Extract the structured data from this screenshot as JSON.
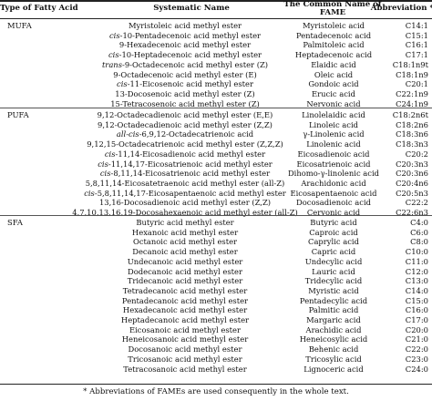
{
  "header": {
    "type_label": "Type of Fatty Acid",
    "systematic_label": "Systematic Name",
    "common_label_line1": "The Common Name of",
    "common_label_line2": "FAME",
    "abbr_label": "Abbreviation *"
  },
  "groups": [
    {
      "name": "MUFA",
      "rows": [
        {
          "prefix": "",
          "systematic": "Myristoleic acid methyl ester",
          "common": "Myristoleic acid",
          "abbr": "C14:1"
        },
        {
          "prefix": "cis",
          "systematic": "-10-Pentadecenoic acid methyl ester",
          "common": "Pentadecenoic acid",
          "abbr": "C15:1"
        },
        {
          "prefix": "",
          "systematic": "9-Hexadecenoic acid methyl ester",
          "common": "Palmitoleic acid",
          "abbr": "C16:1"
        },
        {
          "prefix": "cis",
          "systematic": "-10-Heptadecenoic acid methyl ester",
          "common": "Heptadecenoic acid",
          "abbr": "C17:1"
        },
        {
          "prefix": "trans",
          "systematic": "-9-Octadecenoic acid methyl ester (Z)",
          "common": "Elaidic acid",
          "abbr": "C18:1n9t"
        },
        {
          "prefix": "",
          "systematic": "9-Octadecenoic acid methyl ester (E)",
          "common": "Oleic acid",
          "abbr": "C18:1n9"
        },
        {
          "prefix": "cis",
          "systematic": "-11-Eicosenoic acid methyl ester",
          "common": "Gondoic acid",
          "abbr": "C20:1"
        },
        {
          "prefix": "",
          "systematic": "13-Docosenoic acid methyl ester (Z)",
          "common": "Erucic acid",
          "abbr": "C22:1n9"
        },
        {
          "prefix": "",
          "systematic": "15-Tetracosenoic acid methyl ester (Z)",
          "common": "Nervonic acid",
          "abbr": "C24:1n9"
        }
      ]
    },
    {
      "name": "PUFA",
      "rows": [
        {
          "prefix": "",
          "systematic": "9,12-Octadecadienoic acid methyl ester (E,E)",
          "common": "Linolelaidic acid",
          "abbr": "C18:2n6t"
        },
        {
          "prefix": "",
          "systematic": "9,12-Octadecadienoic acid methyl ester (Z,Z)",
          "common": "Linoleic acid",
          "abbr": "C18:2n6"
        },
        {
          "prefix": "all-cis",
          "systematic": "-6,9,12-Octadecatrienoic acid",
          "common": "γ-Linolenic acid",
          "abbr": "C18:3n6"
        },
        {
          "prefix": "",
          "systematic": "9,12,15-Octadecatrienoic acid methyl ester (Z,Z,Z)",
          "common": "Linolenic acid",
          "abbr": "C18:3n3"
        },
        {
          "prefix": "cis",
          "systematic": "-11,14-Eicosadienoic acid methyl ester",
          "common": "Eicosadienoic acid",
          "abbr": "C20:2"
        },
        {
          "prefix": "cis",
          "systematic": "-11,14,17-Eicosatrienoic acid methyl ester",
          "common": "Eicosatrienoic acid",
          "abbr": "C20:3n3"
        },
        {
          "prefix": "cis",
          "systematic": "-8,11,14-Eicosatrienoic acid methyl ester",
          "common": "Dihomo-γ-linolenic acid",
          "abbr": "C20:3n6"
        },
        {
          "prefix": "",
          "systematic": "5,8,11,14-Eicosatetraenoic acid methyl ester (all-Z)",
          "common": "Arachidonic acid",
          "abbr": "C20:4n6"
        },
        {
          "prefix": "cis",
          "systematic": "-5,8,11,14,17-Eicosapentaenoic acid methyl ester",
          "common": "Eicosapentaenoic acid",
          "abbr": "C20:5n3"
        },
        {
          "prefix": "",
          "systematic": "13,16-Docosadienoic acid methyl ester (Z,Z)",
          "common": "Docosadienoic acid",
          "abbr": "C22:2"
        },
        {
          "prefix": "",
          "systematic": "4,7,10,13,16,19-Docosahexaenoic acid methyl ester (all-Z)",
          "common": "Cervonic acid",
          "abbr": "C22:6n3"
        }
      ]
    },
    {
      "name": "SFA",
      "rows": [
        {
          "prefix": "",
          "systematic": "Butyric acid methyl ester",
          "common": "Butyric acid",
          "abbr": "C4:0"
        },
        {
          "prefix": "",
          "systematic": "Hexanoic acid methyl ester",
          "common": "Caproic acid",
          "abbr": "C6:0"
        },
        {
          "prefix": "",
          "systematic": "Octanoic acid methyl ester",
          "common": "Caprylic acid",
          "abbr": "C8:0"
        },
        {
          "prefix": "",
          "systematic": "Decanoic acid methyl ester",
          "common": "Capric acid",
          "abbr": "C10:0"
        },
        {
          "prefix": "",
          "systematic": "Undecanoic acid methyl ester",
          "common": "Undecylic acid",
          "abbr": "C11:0"
        },
        {
          "prefix": "",
          "systematic": "Dodecanoic acid methyl ester",
          "common": "Lauric acid",
          "abbr": "C12:0"
        },
        {
          "prefix": "",
          "systematic": "Tridecanoic acid methyl ester",
          "common": "Tridecylic acid",
          "abbr": "C13:0"
        },
        {
          "prefix": "",
          "systematic": "Tetradecanoic acid methyl ester",
          "common": "Myristic acid",
          "abbr": "C14:0"
        },
        {
          "prefix": "",
          "systematic": "Pentadecanoic acid methyl ester",
          "common": "Pentadecylic acid",
          "abbr": "C15:0"
        },
        {
          "prefix": "",
          "systematic": "Hexadecanoic acid methyl ester",
          "common": "Palmitic acid",
          "abbr": "C16:0"
        },
        {
          "prefix": "",
          "systematic": "Heptadecanoic acid methyl ester",
          "common": "Margaric acid",
          "abbr": "C17:0"
        },
        {
          "prefix": "",
          "systematic": "Eicosanoic acid methyl ester",
          "common": "Arachidic acid",
          "abbr": "C20:0"
        },
        {
          "prefix": "",
          "systematic": "Heneicosanoic acid methyl ester",
          "common": "Heneicosylic acid",
          "abbr": "C21:0"
        },
        {
          "prefix": "",
          "systematic": "Docosanoic acid methyl ester",
          "common": "Behenic acid",
          "abbr": "C22:0"
        },
        {
          "prefix": "",
          "systematic": "Tricosanoic acid methyl ester",
          "common": "Tricosylic acid",
          "abbr": "C23:0"
        },
        {
          "prefix": "",
          "systematic": "Tetracosanoic acid methyl ester",
          "common": "Lignoceric acid",
          "abbr": "C24:0"
        }
      ]
    }
  ],
  "footnote": "* Abbreviations of FAMEs are used consequently in the whole text."
}
